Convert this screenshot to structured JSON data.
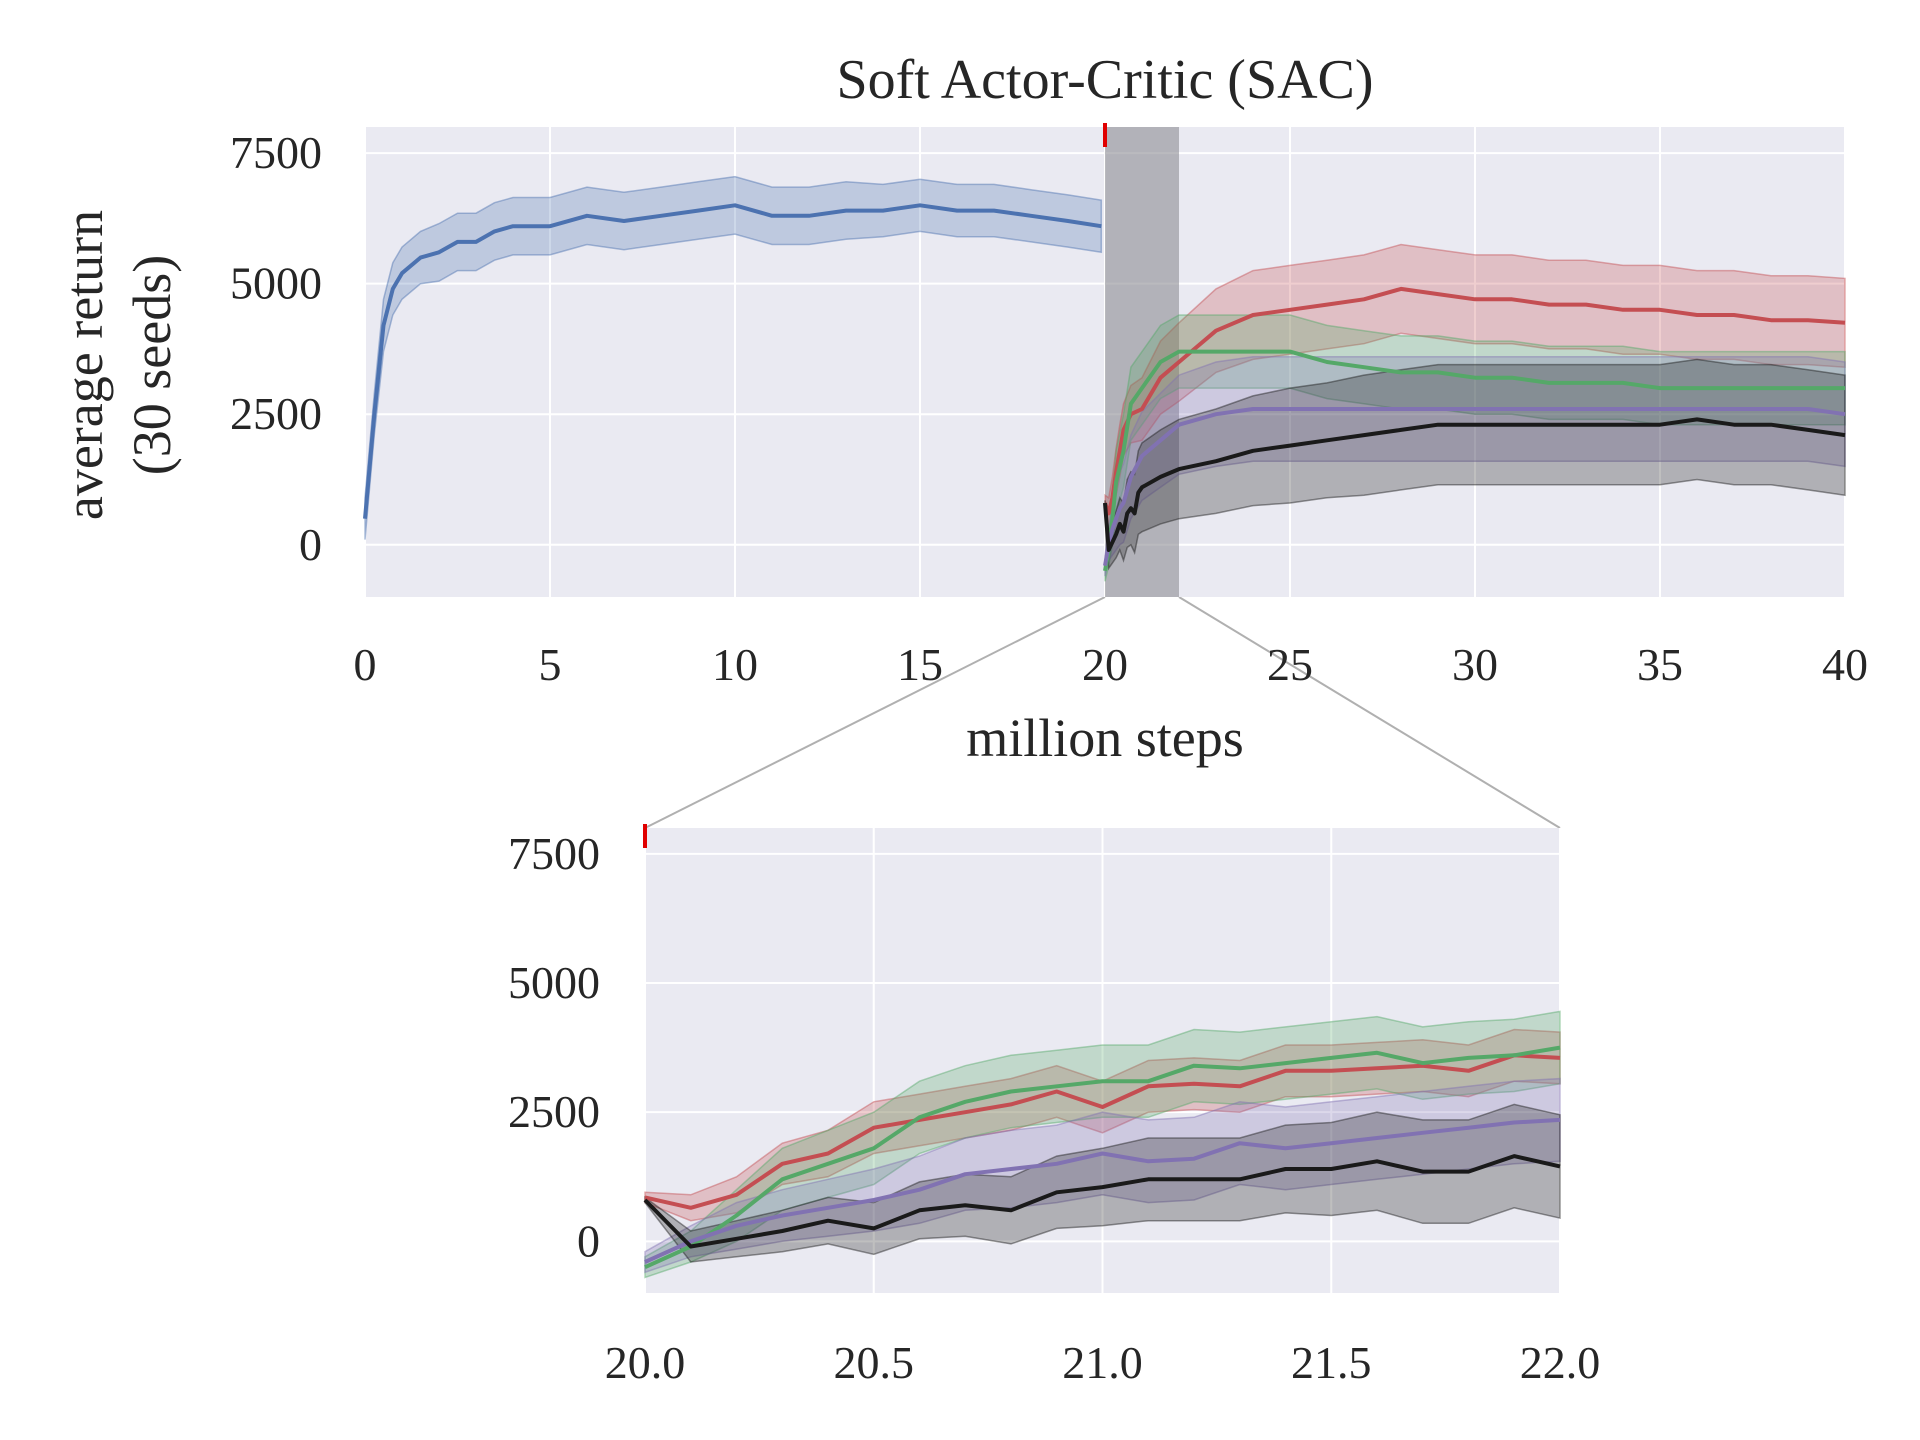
{
  "chart_data": [
    {
      "type": "line",
      "title": "Soft Actor-Critic (SAC)",
      "xlabel": "million steps",
      "ylabel": [
        "average return",
        "(30 seeds)"
      ],
      "xlim": [
        0,
        40
      ],
      "ylim": [
        -1000,
        8000
      ],
      "xticks": [
        0,
        5,
        10,
        15,
        20,
        25,
        30,
        35,
        40
      ],
      "xtick_labels": [
        "0",
        "5",
        "10",
        "15",
        "20",
        "25",
        "30",
        "35",
        "40"
      ],
      "yticks": [
        0,
        2500,
        5000,
        7500
      ],
      "ytick_labels": [
        "0",
        "2500",
        "5000",
        "7500"
      ],
      "grid": true,
      "background": "#EAEAF2",
      "highlight_region": [
        20,
        22
      ],
      "highlight_color": "#8C8C93",
      "event_marker": {
        "x": 20,
        "color": "#E00000"
      },
      "series": [
        {
          "color": "#4C72B0",
          "x": [
            0,
            0.25,
            0.5,
            0.75,
            1,
            1.5,
            2,
            2.5,
            3,
            3.5,
            4,
            5,
            6,
            7,
            8,
            9,
            10,
            11,
            12,
            13,
            14,
            15,
            16,
            17,
            18,
            19,
            19.9
          ],
          "mean": [
            500,
            2500,
            4200,
            4900,
            5200,
            5500,
            5600,
            5800,
            5800,
            6000,
            6100,
            6100,
            6300,
            6200,
            6300,
            6400,
            6500,
            6300,
            6300,
            6400,
            6400,
            6500,
            6400,
            6400,
            6300,
            6200,
            6100
          ],
          "band": [
            400,
            400,
            500,
            500,
            500,
            500,
            550,
            550,
            550,
            550,
            550,
            550,
            550,
            550,
            550,
            550,
            550,
            550,
            550,
            550,
            500,
            500,
            500,
            500,
            500,
            500,
            500
          ]
        },
        {
          "color": "#C44E52",
          "x": [
            20,
            20.1,
            20.2,
            20.3,
            20.4,
            20.5,
            20.7,
            21,
            21.5,
            22,
            23,
            24,
            25,
            26,
            27,
            28,
            29,
            30,
            31,
            32,
            33,
            34,
            35,
            36,
            37,
            38,
            39,
            40
          ],
          "mean": [
            800,
            600,
            900,
            1400,
            1800,
            2200,
            2500,
            2600,
            3200,
            3500,
            4100,
            4400,
            4500,
            4600,
            4700,
            4900,
            4800,
            4700,
            4700,
            4600,
            4600,
            4500,
            4500,
            4400,
            4400,
            4300,
            4300,
            4250
          ],
          "band": [
            150,
            300,
            400,
            450,
            500,
            500,
            550,
            600,
            700,
            750,
            800,
            850,
            850,
            850,
            850,
            850,
            850,
            850,
            850,
            850,
            850,
            850,
            850,
            850,
            850,
            850,
            850,
            850
          ]
        },
        {
          "color": "#55A868",
          "x": [
            20,
            20.1,
            20.2,
            20.3,
            20.4,
            20.5,
            20.7,
            21,
            21.5,
            22,
            23,
            24,
            25,
            26,
            27,
            28,
            29,
            30,
            31,
            32,
            33,
            34,
            35,
            36,
            37,
            38,
            39,
            40
          ],
          "mean": [
            -500,
            -100,
            500,
            1200,
            1500,
            1800,
            2700,
            3000,
            3500,
            3700,
            3700,
            3700,
            3700,
            3500,
            3400,
            3300,
            3300,
            3200,
            3200,
            3100,
            3100,
            3100,
            3000,
            3000,
            3000,
            3000,
            3000,
            3000
          ],
          "band": [
            200,
            300,
            500,
            600,
            650,
            700,
            700,
            700,
            700,
            700,
            700,
            700,
            700,
            700,
            700,
            700,
            700,
            700,
            700,
            700,
            700,
            700,
            700,
            700,
            700,
            700,
            700,
            700
          ]
        },
        {
          "color": "#8172B2",
          "x": [
            20,
            20.1,
            20.2,
            20.3,
            20.4,
            20.5,
            20.7,
            21,
            21.5,
            22,
            23,
            24,
            25,
            26,
            27,
            28,
            29,
            30,
            31,
            32,
            33,
            34,
            35,
            36,
            37,
            38,
            39,
            40
          ],
          "mean": [
            -400,
            0,
            300,
            500,
            700,
            800,
            1300,
            1700,
            2000,
            2300,
            2500,
            2600,
            2600,
            2600,
            2600,
            2600,
            2600,
            2600,
            2600,
            2600,
            2600,
            2600,
            2600,
            2600,
            2600,
            2600,
            2600,
            2500
          ],
          "band": [
            200,
            300,
            500,
            600,
            700,
            750,
            800,
            850,
            900,
            950,
            1000,
            1000,
            1000,
            1000,
            1000,
            1000,
            1000,
            1000,
            1000,
            1000,
            1000,
            1000,
            1000,
            1000,
            1000,
            1000,
            1000,
            1000
          ]
        },
        {
          "color": "#1A1A1A",
          "x": [
            20,
            20.1,
            20.2,
            20.3,
            20.4,
            20.5,
            20.6,
            20.7,
            20.8,
            20.9,
            21,
            21.5,
            22,
            23,
            24,
            25,
            26,
            27,
            28,
            29,
            30,
            31,
            32,
            33,
            34,
            35,
            36,
            37,
            38,
            39,
            40
          ],
          "mean": [
            800,
            -100,
            50,
            200,
            400,
            250,
            600,
            700,
            600,
            1000,
            1100,
            1300,
            1450,
            1600,
            1800,
            1900,
            2000,
            2100,
            2200,
            2300,
            2300,
            2300,
            2300,
            2300,
            2300,
            2300,
            2400,
            2300,
            2300,
            2200,
            2100
          ],
          "band": [
            50,
            350,
            400,
            450,
            500,
            550,
            650,
            700,
            750,
            800,
            850,
            900,
            950,
            1000,
            1050,
            1100,
            1100,
            1150,
            1150,
            1150,
            1150,
            1150,
            1150,
            1150,
            1150,
            1150,
            1150,
            1150,
            1150,
            1150,
            1150
          ]
        }
      ]
    },
    {
      "type": "line",
      "title": "",
      "xlabel": "",
      "ylabel": "",
      "xlim": [
        20,
        22
      ],
      "ylim": [
        -1000,
        8000
      ],
      "xticks": [
        20,
        20.5,
        21,
        21.5,
        22
      ],
      "xtick_labels": [
        "20.0",
        "20.5",
        "21.0",
        "21.5",
        "22.0"
      ],
      "yticks": [
        0,
        2500,
        5000,
        7500
      ],
      "ytick_labels": [
        "0",
        "2500",
        "5000",
        "7500"
      ],
      "grid": true,
      "background": "#EAEAF2",
      "event_marker": {
        "x": 20,
        "color": "#E00000"
      },
      "series": [
        {
          "color": "#C44E52",
          "x": [
            20,
            20.1,
            20.2,
            20.3,
            20.4,
            20.5,
            20.6,
            20.7,
            20.8,
            20.9,
            21,
            21.1,
            21.2,
            21.3,
            21.4,
            21.5,
            21.6,
            21.7,
            21.8,
            21.9,
            22
          ],
          "mean": [
            850,
            650,
            900,
            1500,
            1700,
            2200,
            2350,
            2500,
            2650,
            2900,
            2600,
            3000,
            3050,
            3000,
            3300,
            3300,
            3350,
            3400,
            3300,
            3600,
            3550
          ],
          "band": [
            100,
            250,
            350,
            400,
            450,
            500,
            500,
            500,
            500,
            500,
            500,
            500,
            500,
            500,
            500,
            500,
            500,
            500,
            500,
            500,
            500
          ]
        },
        {
          "color": "#55A868",
          "x": [
            20,
            20.1,
            20.2,
            20.3,
            20.4,
            20.5,
            20.6,
            20.7,
            20.8,
            20.9,
            21,
            21.1,
            21.2,
            21.3,
            21.4,
            21.5,
            21.6,
            21.7,
            21.8,
            21.9,
            22
          ],
          "mean": [
            -500,
            -100,
            500,
            1200,
            1500,
            1800,
            2400,
            2700,
            2900,
            3000,
            3100,
            3100,
            3400,
            3350,
            3450,
            3550,
            3650,
            3450,
            3550,
            3600,
            3750
          ],
          "band": [
            200,
            300,
            500,
            600,
            650,
            700,
            700,
            700,
            700,
            700,
            700,
            700,
            700,
            700,
            700,
            700,
            700,
            700,
            700,
            700,
            700
          ]
        },
        {
          "color": "#8172B2",
          "x": [
            20,
            20.1,
            20.2,
            20.3,
            20.4,
            20.5,
            20.6,
            20.7,
            20.8,
            20.9,
            21,
            21.1,
            21.2,
            21.3,
            21.4,
            21.5,
            21.6,
            21.7,
            21.8,
            21.9,
            22
          ],
          "mean": [
            -400,
            0,
            300,
            500,
            650,
            800,
            1000,
            1300,
            1400,
            1500,
            1700,
            1550,
            1600,
            1900,
            1800,
            1900,
            2000,
            2100,
            2200,
            2300,
            2350
          ],
          "band": [
            200,
            300,
            450,
            500,
            550,
            600,
            650,
            700,
            750,
            750,
            800,
            800,
            800,
            800,
            800,
            800,
            800,
            800,
            800,
            800,
            800
          ]
        },
        {
          "color": "#1A1A1A",
          "x": [
            20,
            20.1,
            20.2,
            20.3,
            20.4,
            20.5,
            20.6,
            20.7,
            20.8,
            20.9,
            21,
            21.1,
            21.2,
            21.3,
            21.4,
            21.5,
            21.6,
            21.7,
            21.8,
            21.9,
            22
          ],
          "mean": [
            800,
            -100,
            50,
            200,
            400,
            250,
            600,
            700,
            600,
            950,
            1050,
            1200,
            1200,
            1200,
            1400,
            1400,
            1550,
            1350,
            1350,
            1650,
            1450
          ],
          "band": [
            50,
            300,
            350,
            400,
            450,
            500,
            550,
            600,
            650,
            700,
            750,
            800,
            800,
            800,
            850,
            900,
            950,
            1000,
            1000,
            1000,
            1000
          ]
        }
      ]
    }
  ]
}
